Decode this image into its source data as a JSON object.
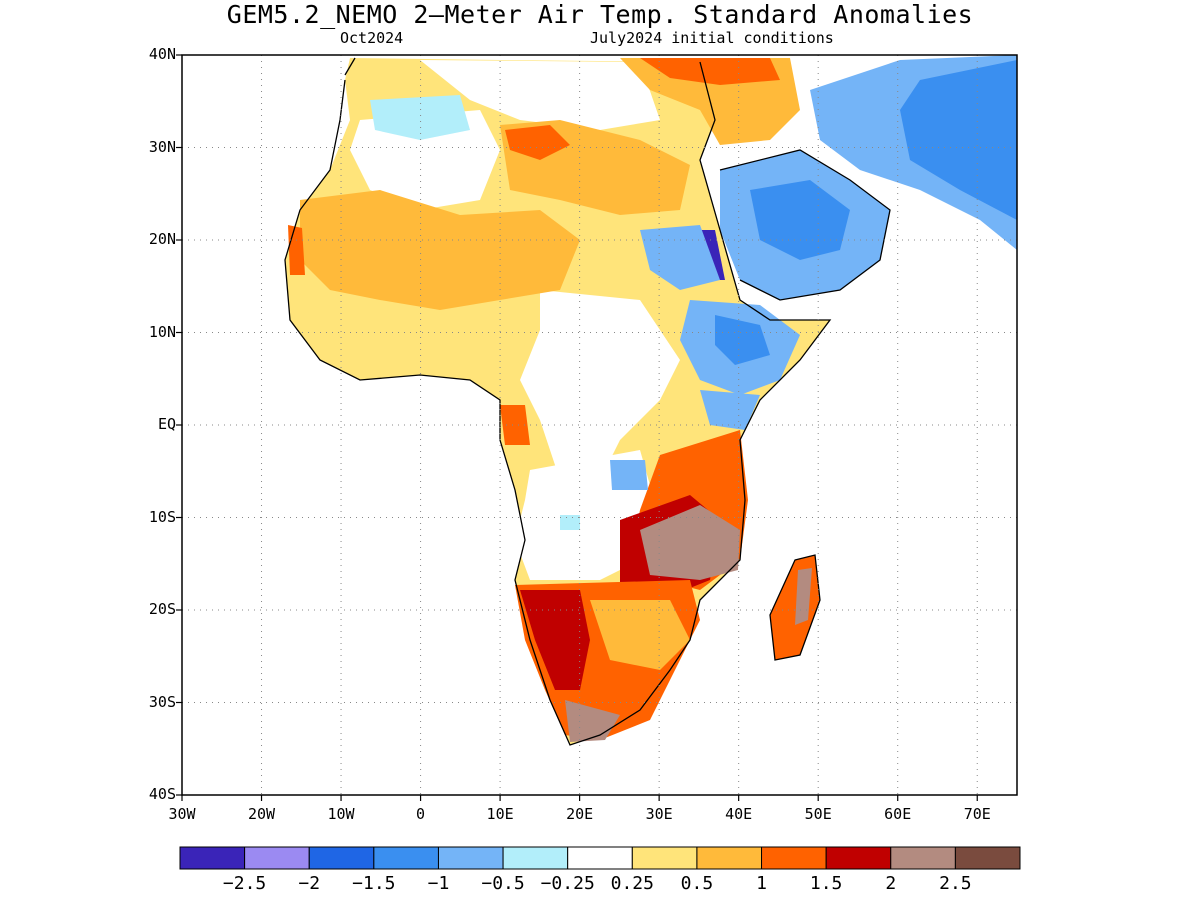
{
  "title": "GEM5.2_NEMO 2–Meter Air Temp. Standard Anomalies",
  "subtitle_left": "Oct2024",
  "subtitle_right": "July2024 initial conditions",
  "lat_ticks": [
    {
      "label": "40N",
      "value": 40
    },
    {
      "label": "30N",
      "value": 30
    },
    {
      "label": "20N",
      "value": 20
    },
    {
      "label": "10N",
      "value": 10
    },
    {
      "label": "EQ",
      "value": 0
    },
    {
      "label": "10S",
      "value": -10
    },
    {
      "label": "20S",
      "value": -20
    },
    {
      "label": "30S",
      "value": -30
    },
    {
      "label": "40S",
      "value": -40
    }
  ],
  "lon_ticks": [
    {
      "label": "30W",
      "value": -30
    },
    {
      "label": "20W",
      "value": -20
    },
    {
      "label": "10W",
      "value": -10
    },
    {
      "label": "0",
      "value": 0
    },
    {
      "label": "10E",
      "value": 10
    },
    {
      "label": "20E",
      "value": 20
    },
    {
      "label": "30E",
      "value": 30
    },
    {
      "label": "40E",
      "value": 40
    },
    {
      "label": "50E",
      "value": 50
    },
    {
      "label": "60E",
      "value": 60
    },
    {
      "label": "70E",
      "value": 70
    }
  ],
  "extent": {
    "lon_min": -30,
    "lon_max": 75,
    "lat_min": -40,
    "lat_max": 40
  },
  "colorbar": {
    "colors": [
      "#3a24b8",
      "#9b8af2",
      "#1f66e5",
      "#3a8ff0",
      "#74b4f7",
      "#b2eefa",
      "#ffffff",
      "#ffe47a",
      "#ffba3a",
      "#ff6200",
      "#c00000",
      "#b38b80",
      "#7a4b3e"
    ],
    "labels": [
      "−2.5",
      "−2",
      "−1.5",
      "−1",
      "−0.5",
      "−0.25",
      "0.25",
      "0.5",
      "1",
      "1.5",
      "2",
      "2.5"
    ]
  },
  "colors": {
    "strong_warm": "#c00000",
    "warm": "#ff6200",
    "mild_warm": "#ffba3a",
    "slight_warm": "#ffe47a",
    "extreme_warm": "#b38b80",
    "slight_cool": "#b2eefa",
    "mild_cool": "#74b4f7",
    "cool": "#3a8ff0",
    "strong_cool": "#1f66e5",
    "extreme_cool": "#3a24b8"
  }
}
